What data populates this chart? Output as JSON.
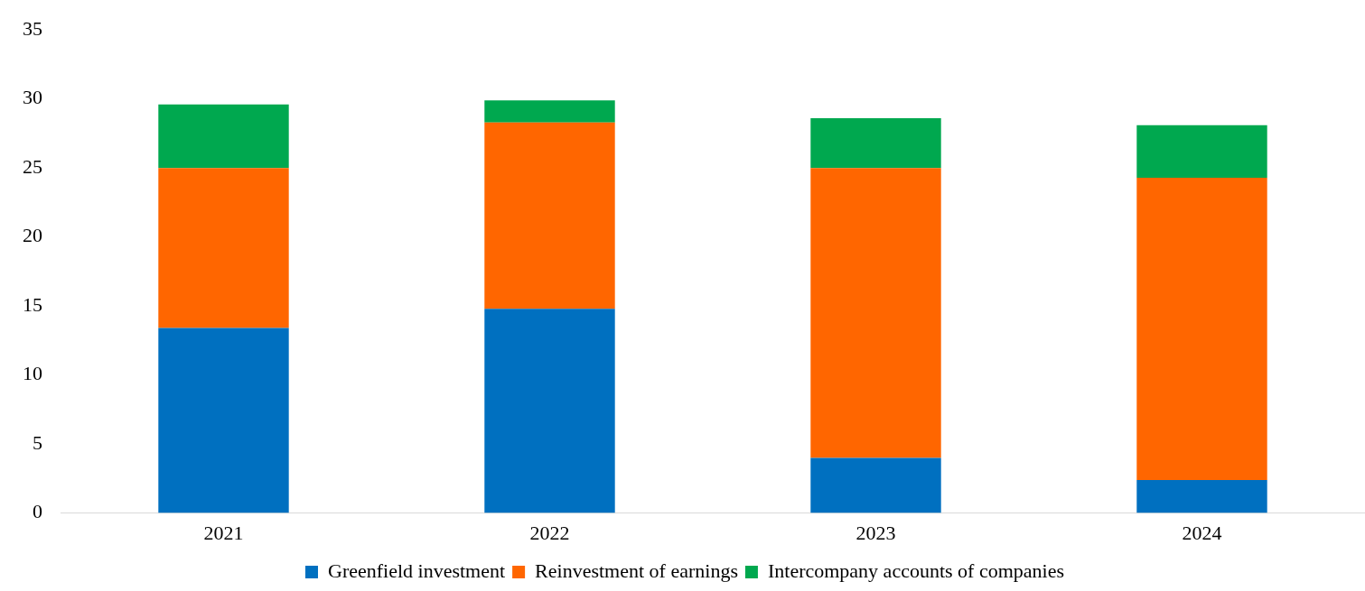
{
  "chart_data": {
    "type": "bar",
    "stacked": true,
    "categories": [
      "2021",
      "2022",
      "2023",
      "2024"
    ],
    "series": [
      {
        "name": "Greenfield investment",
        "color": "#0070c0",
        "values": [
          13.4,
          14.8,
          4.0,
          2.4
        ]
      },
      {
        "name": "Reinvestment of earnings",
        "color": "#ff6600",
        "values": [
          11.6,
          13.5,
          21.0,
          21.9
        ]
      },
      {
        "name": "Intercompany accounts of companies",
        "color": "#00a84f",
        "values": [
          4.6,
          1.6,
          3.6,
          3.8
        ]
      }
    ],
    "ylim": [
      0,
      35
    ],
    "yticks": [
      0,
      5,
      10,
      15,
      20,
      25,
      30,
      35
    ],
    "grid": false,
    "legend": "bottom"
  }
}
